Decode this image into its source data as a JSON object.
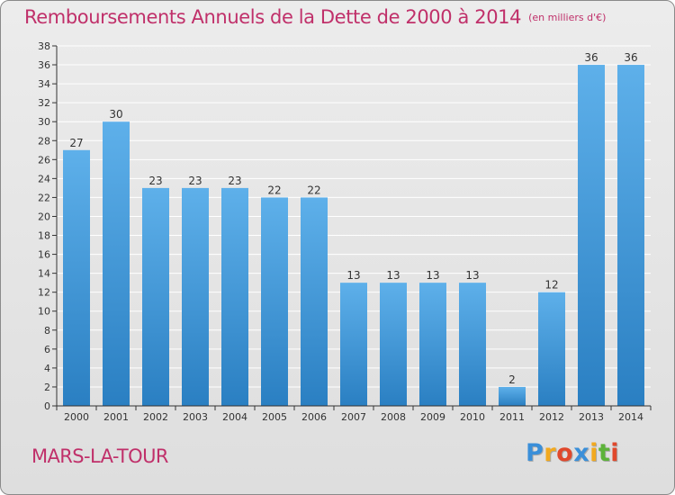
{
  "header": {
    "title": "Remboursements Annuels de la Dette de 2000 à 2014",
    "unit": "(en milliers d'€)"
  },
  "footer": {
    "city": "MARS-LA-TOUR",
    "logo_letters": [
      "P",
      "r",
      "o",
      "x",
      "i",
      "t",
      "i"
    ],
    "logo_colors": [
      "#3a8fd9",
      "#f2a91f",
      "#e0482c",
      "#3a8fd9",
      "#f2a91f",
      "#5db33a",
      "#e0482c"
    ]
  },
  "colors": {
    "bar_top": "#5eb0ea",
    "bar_bottom": "#2a7fc2",
    "grid": "#ffffff",
    "axis": "#333333",
    "title": "#c0306a"
  },
  "chart_data": {
    "type": "bar",
    "categories": [
      "2000",
      "2001",
      "2002",
      "2003",
      "2004",
      "2005",
      "2006",
      "2007",
      "2008",
      "2009",
      "2010",
      "2011",
      "2012",
      "2013",
      "2014"
    ],
    "values": [
      27,
      30,
      23,
      23,
      23,
      22,
      22,
      13,
      13,
      13,
      13,
      2,
      12,
      36,
      36
    ],
    "title": "Remboursements Annuels de la Dette de 2000 à 2014",
    "xlabel": "",
    "ylabel": "",
    "ylim": [
      0,
      38
    ],
    "yticks": [
      0,
      2,
      4,
      6,
      8,
      10,
      12,
      14,
      16,
      18,
      20,
      22,
      24,
      26,
      28,
      30,
      32,
      34,
      36,
      38
    ],
    "grid": true,
    "data_labels": true
  }
}
